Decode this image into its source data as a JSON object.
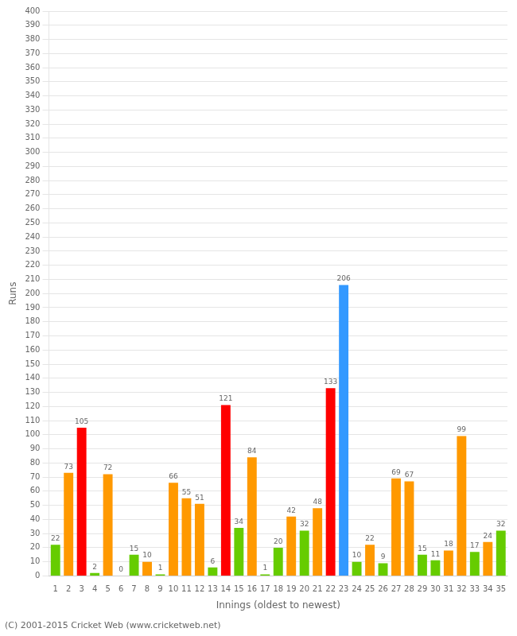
{
  "chart_data": {
    "type": "bar",
    "categories": [
      "1",
      "2",
      "3",
      "4",
      "5",
      "6",
      "7",
      "8",
      "9",
      "10",
      "11",
      "12",
      "13",
      "14",
      "15",
      "16",
      "17",
      "18",
      "19",
      "20",
      "21",
      "22",
      "23",
      "24",
      "25",
      "26",
      "27",
      "28",
      "29",
      "30",
      "31",
      "32",
      "33",
      "34",
      "35"
    ],
    "values": [
      22,
      73,
      105,
      2,
      72,
      0,
      15,
      10,
      1,
      66,
      55,
      51,
      6,
      121,
      34,
      84,
      1,
      20,
      42,
      32,
      48,
      133,
      206,
      10,
      22,
      9,
      69,
      67,
      15,
      11,
      18,
      99,
      17,
      24,
      32
    ],
    "colors": [
      "#66cc00",
      "#ff9900",
      "#ff0000",
      "#66cc00",
      "#ff9900",
      "#66cc00",
      "#66cc00",
      "#ff9900",
      "#66cc00",
      "#ff9900",
      "#ff9900",
      "#ff9900",
      "#66cc00",
      "#ff0000",
      "#66cc00",
      "#ff9900",
      "#66cc00",
      "#66cc00",
      "#ff9900",
      "#66cc00",
      "#ff9900",
      "#ff0000",
      "#3399ff",
      "#66cc00",
      "#ff9900",
      "#66cc00",
      "#ff9900",
      "#ff9900",
      "#66cc00",
      "#66cc00",
      "#ff9900",
      "#ff9900",
      "#66cc00",
      "#ff9900",
      "#66cc00"
    ],
    "xlabel": "Innings (oldest to newest)",
    "ylabel": "Runs",
    "ylim": [
      0,
      400
    ],
    "yticks": [
      0,
      10,
      20,
      30,
      40,
      50,
      60,
      70,
      80,
      90,
      100,
      110,
      120,
      130,
      140,
      150,
      160,
      170,
      180,
      190,
      200,
      210,
      220,
      230,
      240,
      250,
      260,
      270,
      280,
      290,
      300,
      310,
      320,
      330,
      340,
      350,
      360,
      370,
      380,
      390,
      400
    ],
    "grid": true,
    "data_labels": true,
    "annotations": [
      "(C) 2001-2015 Cricket Web (www.cricketweb.net)"
    ]
  }
}
